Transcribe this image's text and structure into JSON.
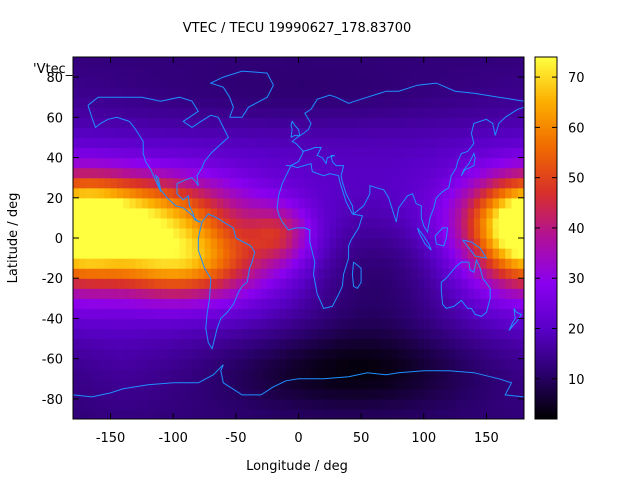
{
  "chart_data": {
    "type": "heatmap",
    "title": "VTEC / TECU 19990627_178.83700",
    "xlabel": "Longitude / deg",
    "ylabel": "Latitude / deg",
    "key_label": "'Vtec_",
    "xlim": [
      -180,
      180
    ],
    "ylim": [
      -90,
      90
    ],
    "x_ticks": [
      "-150",
      "-100",
      "-50",
      "0",
      "50",
      "100",
      "150"
    ],
    "x_tick_values": [
      -150,
      -100,
      -50,
      0,
      50,
      100,
      150
    ],
    "y_ticks": [
      "80",
      "60",
      "40",
      "20",
      "0",
      "-20",
      "-40",
      "-60",
      "-80"
    ],
    "y_tick_values": [
      80,
      60,
      40,
      20,
      0,
      -20,
      -40,
      -60,
      -80
    ],
    "colorbar": {
      "range": [
        2,
        74
      ],
      "ticks": [
        "70",
        "60",
        "50",
        "40",
        "30",
        "20",
        "10"
      ],
      "tick_values": [
        70,
        60,
        50,
        40,
        30,
        20,
        10
      ],
      "palette": [
        "#000000",
        "#2a006b",
        "#5a00c8",
        "#8a00f0",
        "#b0109a",
        "#d8302a",
        "#f06a00",
        "#fcae00",
        "#ffff40"
      ]
    },
    "grid": false,
    "legend": "none",
    "overlay": "coastlines",
    "overlay_color": "#1e90ff",
    "anomaly_peaks": [
      {
        "lon": -130,
        "lat": 10,
        "value": 70
      },
      {
        "lon": -100,
        "lat": -10,
        "value": 65
      },
      {
        "lon": 175,
        "lat": 0,
        "value": 70
      },
      {
        "lon": -15,
        "lat": 0,
        "value": 40
      }
    ]
  }
}
